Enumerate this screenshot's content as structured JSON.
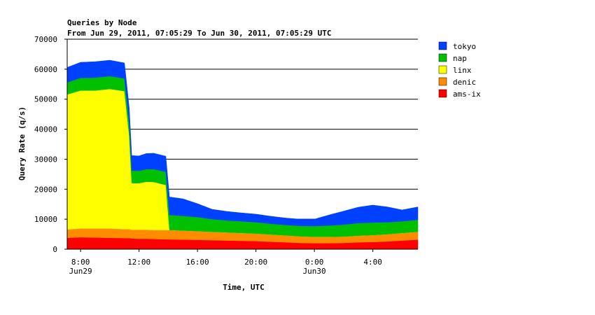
{
  "chart_data": {
    "type": "area",
    "title": "Queries by Node",
    "subtitle": "From Jun 29, 2011, 07:05:29 To Jun 30, 2011, 07:05:29 UTC",
    "xlabel": "Time, UTC",
    "ylabel": "Query Rate (q/s)",
    "xlim": [
      "2011-06-29 07:05",
      "2011-06-30 07:05"
    ],
    "ylim": [
      0,
      70000
    ],
    "y_ticks": [
      "0",
      "10000",
      "20000",
      "30000",
      "40000",
      "50000",
      "60000",
      "70000"
    ],
    "x_ticks": [
      {
        "time": "2011-06-29 08:00",
        "label": "8:00",
        "sublabel": "Jun29"
      },
      {
        "time": "2011-06-29 12:00",
        "label": "12:00",
        "sublabel": ""
      },
      {
        "time": "2011-06-29 16:00",
        "label": "16:00",
        "sublabel": ""
      },
      {
        "time": "2011-06-29 20:00",
        "label": "20:00",
        "sublabel": ""
      },
      {
        "time": "2011-06-30 00:00",
        "label": "0:00",
        "sublabel": "Jun30"
      },
      {
        "time": "2011-06-30 04:00",
        "label": "4:00",
        "sublabel": ""
      }
    ],
    "grid": "horizontal",
    "stacked": true,
    "legend_position": "right",
    "x": [
      "2011-06-29 07:05",
      "2011-06-29 08:00",
      "2011-06-29 09:00",
      "2011-06-29 10:00",
      "2011-06-29 11:00",
      "2011-06-29 11:20",
      "2011-06-29 11:30",
      "2011-06-29 12:00",
      "2011-06-29 12:30",
      "2011-06-29 13:00",
      "2011-06-29 13:50",
      "2011-06-29 14:05",
      "2011-06-29 15:00",
      "2011-06-29 16:00",
      "2011-06-29 17:00",
      "2011-06-29 18:00",
      "2011-06-29 19:00",
      "2011-06-29 20:00",
      "2011-06-29 21:00",
      "2011-06-29 22:00",
      "2011-06-29 23:00",
      "2011-06-30 00:00",
      "2011-06-30 01:00",
      "2011-06-30 02:00",
      "2011-06-30 03:00",
      "2011-06-30 04:00",
      "2011-06-30 05:00",
      "2011-06-30 06:00",
      "2011-06-30 07:05"
    ],
    "series": [
      {
        "name": "ams-ix",
        "color": "#ff0000",
        "values": [
          3800,
          4000,
          3900,
          3800,
          3700,
          3700,
          3600,
          3500,
          3500,
          3400,
          3300,
          3300,
          3200,
          3100,
          3000,
          2900,
          2800,
          2700,
          2500,
          2300,
          2100,
          2000,
          2000,
          2100,
          2300,
          2400,
          2600,
          2900,
          3200
        ]
      },
      {
        "name": "denic",
        "color": "#ff8c00",
        "values": [
          2800,
          2900,
          3000,
          3100,
          3000,
          3000,
          2900,
          3000,
          3000,
          3000,
          3100,
          3100,
          3000,
          2900,
          2800,
          2700,
          2600,
          2500,
          2400,
          2300,
          2200,
          2100,
          2100,
          2100,
          2200,
          2300,
          2400,
          2500,
          2600
        ]
      },
      {
        "name": "linx",
        "color": "#ffff00",
        "values": [
          45000,
          46000,
          46000,
          46500,
          46000,
          31000,
          15500,
          15500,
          16000,
          16000,
          15000,
          0,
          0,
          0,
          0,
          0,
          0,
          0,
          0,
          0,
          0,
          0,
          0,
          0,
          0,
          0,
          0,
          0,
          0
        ]
      },
      {
        "name": "nap",
        "color": "#00c000",
        "values": [
          4000,
          4200,
          4300,
          4300,
          4200,
          4200,
          4200,
          4100,
          4200,
          4300,
          4400,
          5000,
          4900,
          4700,
          4200,
          4000,
          3900,
          3800,
          3600,
          3500,
          3500,
          3600,
          3800,
          4000,
          4200,
          4200,
          4000,
          3900,
          4000
        ]
      },
      {
        "name": "tokyo",
        "color": "#0040ff",
        "values": [
          5000,
          5200,
          5300,
          5300,
          5200,
          5100,
          5000,
          5000,
          5200,
          5300,
          5200,
          6000,
          5700,
          4500,
          3300,
          3000,
          2800,
          2700,
          2500,
          2300,
          2200,
          2300,
          3500,
          4500,
          5300,
          5800,
          5100,
          3800,
          4300
        ]
      }
    ]
  }
}
